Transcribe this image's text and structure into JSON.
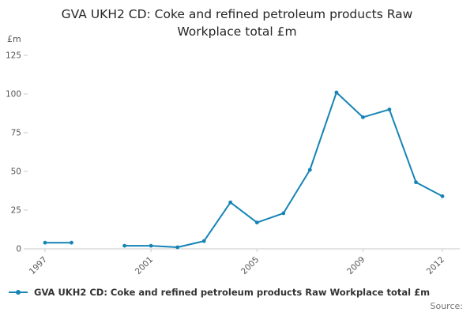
{
  "chart_data": {
    "type": "line",
    "title": "GVA UKH2 CD: Coke and refined petroleum products Raw Workplace total £m",
    "xlabel": "",
    "ylabel": "£m",
    "ylim": [
      0,
      125
    ],
    "yticks": [
      0,
      25,
      50,
      75,
      100,
      125
    ],
    "xtick_years": [
      1997,
      2001,
      2005,
      2009,
      2012
    ],
    "grid": false,
    "legend_position": "bottom-left",
    "series": [
      {
        "name": "GVA UKH2 CD: Coke and refined petroleum products Raw Workplace total £m",
        "color": "#1584b5",
        "x": [
          1997,
          1998,
          1999,
          2000,
          2001,
          2002,
          2003,
          2004,
          2005,
          2006,
          2007,
          2008,
          2009,
          2010,
          2011,
          2012
        ],
        "values": [
          4,
          4,
          null,
          2,
          2,
          1,
          5,
          30,
          17,
          23,
          51,
          101,
          85,
          90,
          43,
          34
        ]
      }
    ]
  },
  "footer": {
    "source_label": "Source:"
  }
}
